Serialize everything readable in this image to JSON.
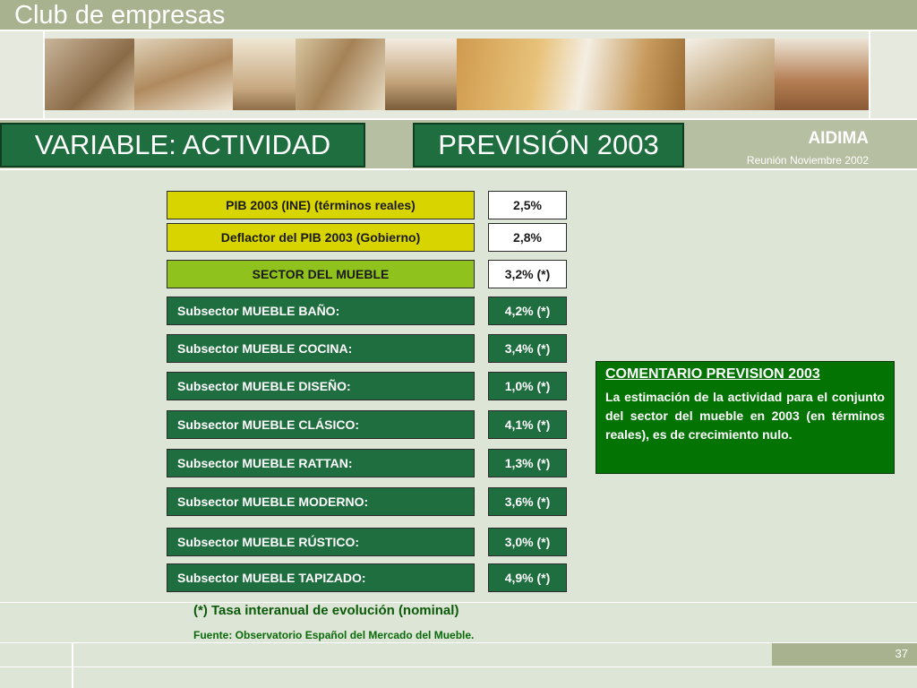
{
  "header": {
    "title": "Club de empresas"
  },
  "titles": {
    "left": "VARIABLE: ACTIVIDAD",
    "right": "PREVISIÓN 2003"
  },
  "org": {
    "name": "AIDIMA",
    "meeting": "Reunión Noviembre 2002"
  },
  "rows": [
    {
      "label": "PIB 2003 (INE) (términos reales)",
      "value": "2,5%"
    },
    {
      "label": "Deflactor del PIB 2003 (Gobierno)",
      "value": "2,8%"
    },
    {
      "label": "SECTOR DEL MUEBLE",
      "value": "3,2% (*)"
    },
    {
      "label": "Subsector  MUEBLE BAÑO:",
      "value": "4,2% (*)"
    },
    {
      "label": "Subsector  MUEBLE COCINA:",
      "value": "3,4% (*)"
    },
    {
      "label": "Subsector MUEBLE DISEÑO:",
      "value": "1,0% (*)"
    },
    {
      "label": "Subsector MUEBLE CLÁSICO:",
      "value": "4,1% (*)"
    },
    {
      "label": "Subsector MUEBLE RATTAN:",
      "value": "1,3% (*)"
    },
    {
      "label": "Subsector MUEBLE MODERNO:",
      "value": "3,6% (*)"
    },
    {
      "label": "Subsector MUEBLE RÚSTICO:",
      "value": "3,0% (*)"
    },
    {
      "label": "Subsector MUEBLE TAPIZADO:",
      "value": "4,9% (*)"
    }
  ],
  "comment": {
    "heading": "COMENTARIO PREVISION 2003",
    "body": "La estimación de la actividad para el conjunto del sector del mueble en 2003 (en términos reales), es de crecimiento nulo."
  },
  "footer": {
    "note": "(*) Tasa interanual de evolución (nominal)",
    "source": "Fuente: Observatorio Español del Mercado del Mueble.",
    "page": "37"
  },
  "colors": {
    "dark_green": "#1f6e3f",
    "yellow": "#d8d400",
    "lime": "#8fc21c",
    "comment_green": "#037403",
    "olive": "#a8b28e"
  }
}
